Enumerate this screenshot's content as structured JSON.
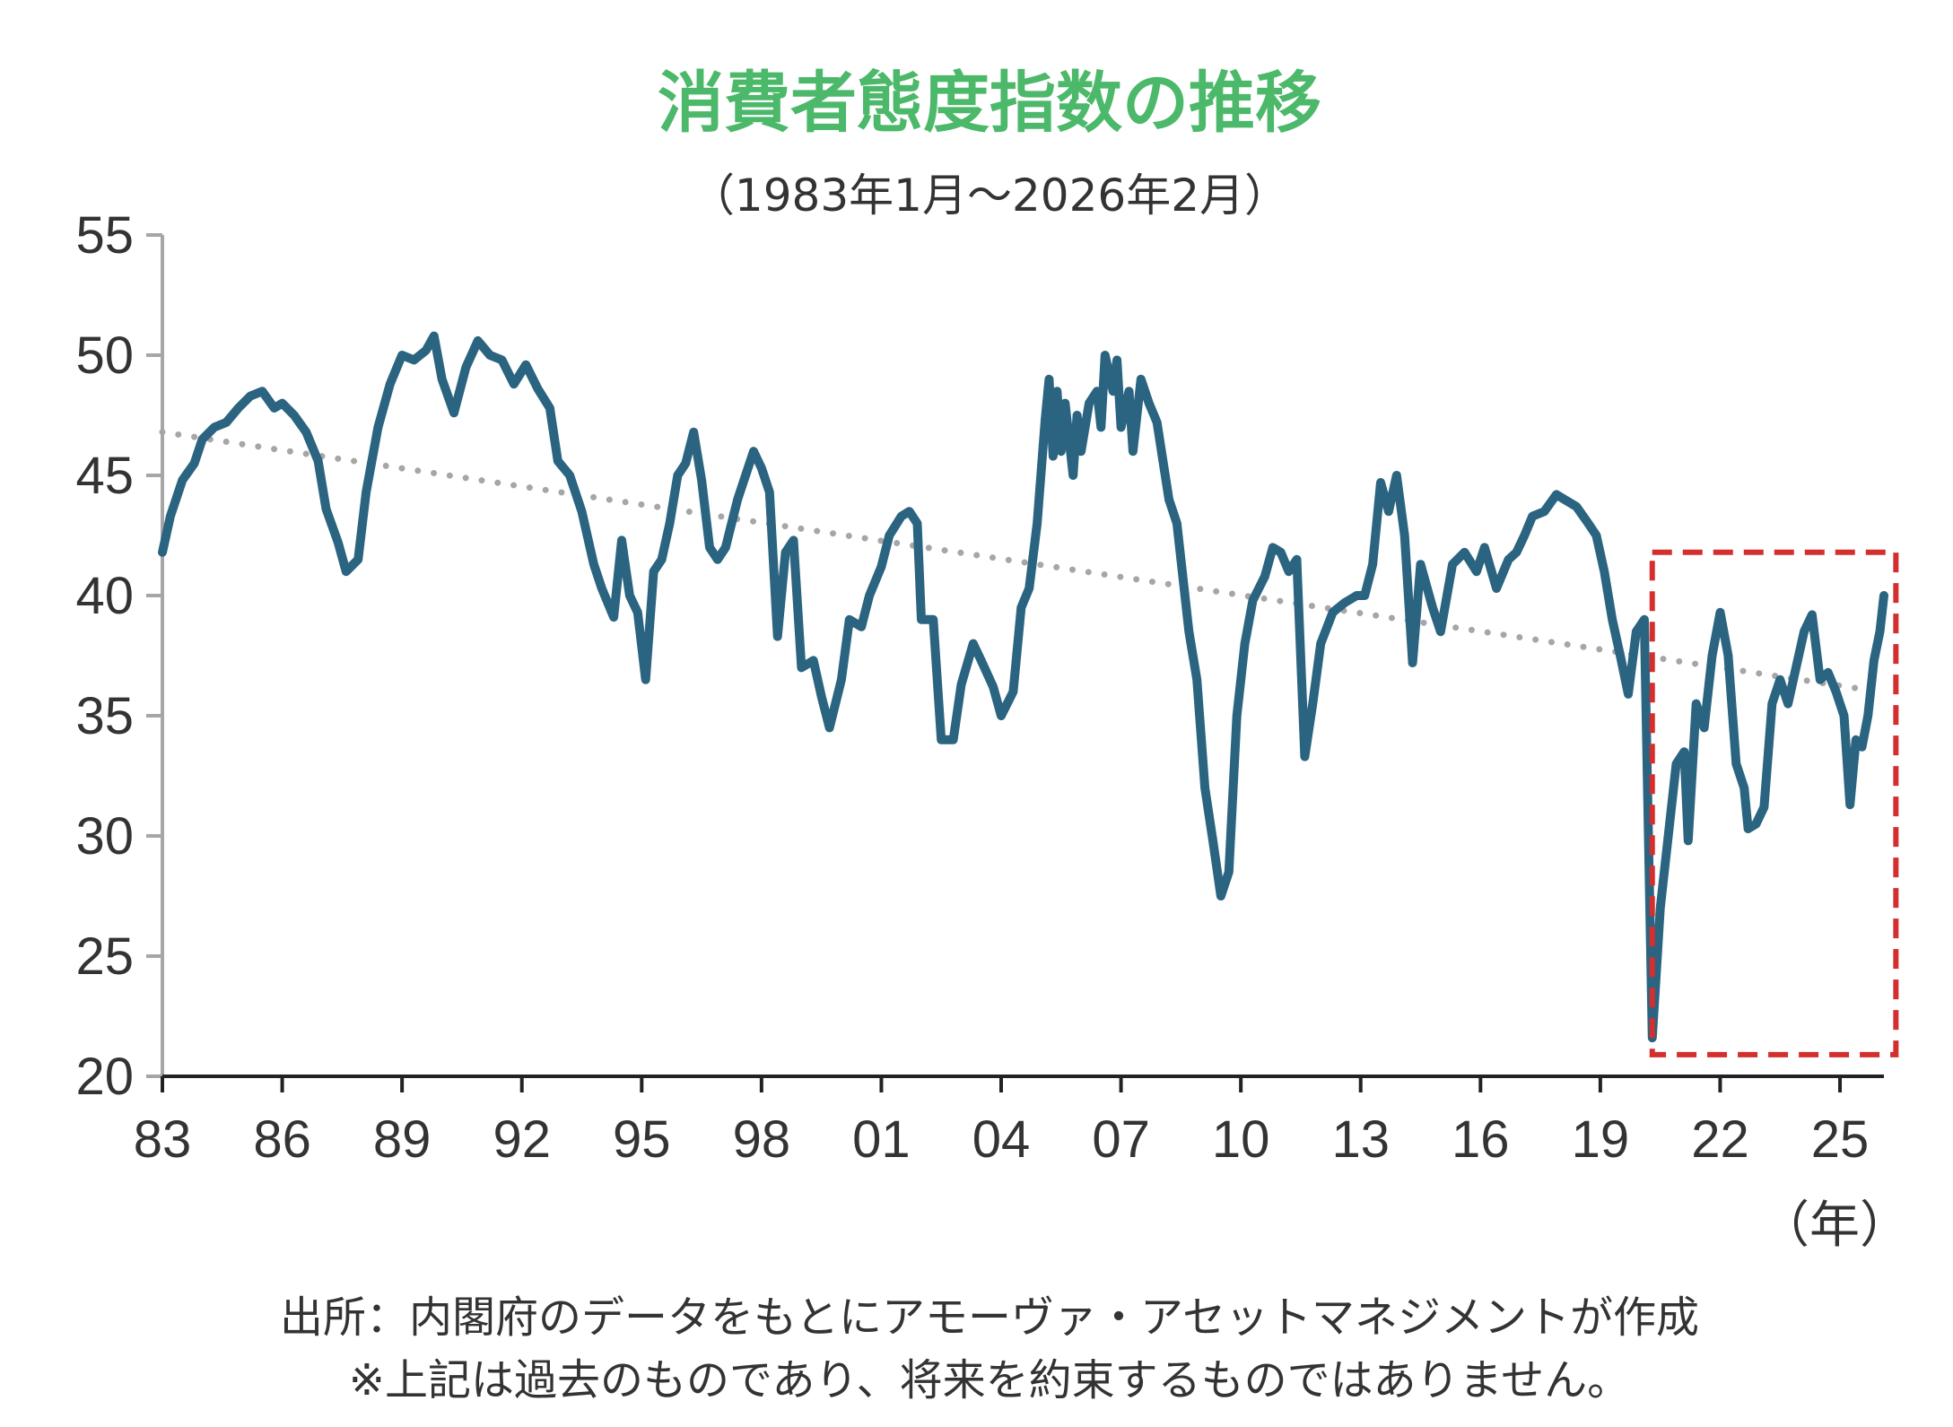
{
  "title": "消費者態度指数の推移",
  "subtitle": "（1983年1月～2026年2月）",
  "x_unit": "（年）",
  "source_note": "出所：内閣府のデータをもとにアモーヴァ・アセットマネジメントが作成",
  "disclaimer": "※上記は過去のものであり、将来を約束するものではありません。",
  "colors": {
    "title": "#4cb86a",
    "series": "#2b6480",
    "trend": "#a6a6a6",
    "highlight_box": "#d32f2f",
    "axis": "#a6a6a6",
    "text": "#333333"
  },
  "chart_data": {
    "type": "line",
    "title": "消費者態度指数の推移",
    "subtitle": "（1983年1月～2026年2月）",
    "xlabel": "（年）",
    "ylabel": "",
    "xlim": [
      1983.0,
      2026.1
    ],
    "ylim": [
      20,
      55
    ],
    "y_ticks": [
      "20",
      "25",
      "30",
      "35",
      "40",
      "45",
      "50",
      "55"
    ],
    "x_ticks": [
      {
        "x": 1983,
        "label": "83"
      },
      {
        "x": 1986,
        "label": "86"
      },
      {
        "x": 1989,
        "label": "89"
      },
      {
        "x": 1992,
        "label": "92"
      },
      {
        "x": 1995,
        "label": "95"
      },
      {
        "x": 1998,
        "label": "98"
      },
      {
        "x": 2001,
        "label": "01"
      },
      {
        "x": 2004,
        "label": "04"
      },
      {
        "x": 2007,
        "label": "07"
      },
      {
        "x": 2010,
        "label": "10"
      },
      {
        "x": 2013,
        "label": "13"
      },
      {
        "x": 2016,
        "label": "16"
      },
      {
        "x": 2019,
        "label": "19"
      },
      {
        "x": 2022,
        "label": "22"
      },
      {
        "x": 2025,
        "label": "25"
      }
    ],
    "grid": false,
    "legend": "none",
    "series": [
      {
        "values": [
          [
            1983.0,
            41.8
          ],
          [
            1983.2,
            43.3
          ],
          [
            1983.5,
            44.8
          ],
          [
            1983.8,
            45.5
          ],
          [
            1984.0,
            46.5
          ],
          [
            1984.3,
            47.0
          ],
          [
            1984.6,
            47.2
          ],
          [
            1984.9,
            47.8
          ],
          [
            1985.2,
            48.3
          ],
          [
            1985.5,
            48.5
          ],
          [
            1985.8,
            47.8
          ],
          [
            1986.0,
            48.0
          ],
          [
            1986.3,
            47.5
          ],
          [
            1986.6,
            46.8
          ],
          [
            1986.9,
            45.6
          ],
          [
            1987.1,
            43.6
          ],
          [
            1987.4,
            42.2
          ],
          [
            1987.6,
            41.0
          ],
          [
            1987.9,
            41.5
          ],
          [
            1988.1,
            44.3
          ],
          [
            1988.4,
            47.0
          ],
          [
            1988.7,
            48.8
          ],
          [
            1989.0,
            50.0
          ],
          [
            1989.3,
            49.8
          ],
          [
            1989.6,
            50.2
          ],
          [
            1989.8,
            50.8
          ],
          [
            1990.0,
            49.0
          ],
          [
            1990.3,
            47.6
          ],
          [
            1990.6,
            49.5
          ],
          [
            1990.9,
            50.6
          ],
          [
            1991.2,
            50.0
          ],
          [
            1991.5,
            49.8
          ],
          [
            1991.8,
            48.8
          ],
          [
            1992.1,
            49.6
          ],
          [
            1992.4,
            48.6
          ],
          [
            1992.7,
            47.8
          ],
          [
            1992.9,
            45.6
          ],
          [
            1993.2,
            45.0
          ],
          [
            1993.5,
            43.5
          ],
          [
            1993.8,
            41.3
          ],
          [
            1994.0,
            40.3
          ],
          [
            1994.3,
            39.1
          ],
          [
            1994.5,
            42.3
          ],
          [
            1994.7,
            40.0
          ],
          [
            1994.9,
            39.3
          ],
          [
            1995.1,
            36.5
          ],
          [
            1995.3,
            41.0
          ],
          [
            1995.5,
            41.5
          ],
          [
            1995.7,
            43.0
          ],
          [
            1995.9,
            45.0
          ],
          [
            1996.1,
            45.5
          ],
          [
            1996.3,
            46.8
          ],
          [
            1996.5,
            44.8
          ],
          [
            1996.7,
            42.0
          ],
          [
            1996.9,
            41.5
          ],
          [
            1997.1,
            42.0
          ],
          [
            1997.4,
            44.0
          ],
          [
            1997.6,
            45.0
          ],
          [
            1997.8,
            46.0
          ],
          [
            1998.0,
            45.3
          ],
          [
            1998.2,
            44.3
          ],
          [
            1998.4,
            38.3
          ],
          [
            1998.6,
            41.8
          ],
          [
            1998.8,
            42.3
          ],
          [
            1999.0,
            37.0
          ],
          [
            1999.3,
            37.3
          ],
          [
            1999.5,
            35.8
          ],
          [
            1999.7,
            34.5
          ],
          [
            2000.0,
            36.5
          ],
          [
            2000.2,
            39.0
          ],
          [
            2000.5,
            38.7
          ],
          [
            2000.7,
            40.0
          ],
          [
            2001.0,
            41.2
          ],
          [
            2001.2,
            42.5
          ],
          [
            2001.5,
            43.3
          ],
          [
            2001.7,
            43.5
          ],
          [
            2001.9,
            43.0
          ],
          [
            2002.0,
            39.0
          ],
          [
            2002.3,
            39.0
          ],
          [
            2002.5,
            34.0
          ],
          [
            2002.8,
            34.0
          ],
          [
            2003.0,
            36.3
          ],
          [
            2003.3,
            38.0
          ],
          [
            2003.5,
            37.3
          ],
          [
            2003.8,
            36.2
          ],
          [
            2004.0,
            35.0
          ],
          [
            2004.3,
            36.0
          ],
          [
            2004.5,
            39.5
          ],
          [
            2004.7,
            40.3
          ],
          [
            2004.9,
            43.0
          ],
          [
            2005.1,
            47.3
          ],
          [
            2005.2,
            49.0
          ],
          [
            2005.3,
            45.8
          ],
          [
            2005.4,
            48.5
          ],
          [
            2005.5,
            46.0
          ],
          [
            2005.6,
            48.0
          ],
          [
            2005.8,
            45.0
          ],
          [
            2005.9,
            47.5
          ],
          [
            2006.0,
            46.0
          ],
          [
            2006.2,
            48.0
          ],
          [
            2006.4,
            48.5
          ],
          [
            2006.5,
            47.0
          ],
          [
            2006.6,
            50.0
          ],
          [
            2006.8,
            48.5
          ],
          [
            2006.9,
            49.8
          ],
          [
            2007.0,
            47.0
          ],
          [
            2007.2,
            48.5
          ],
          [
            2007.3,
            46.0
          ],
          [
            2007.5,
            49.0
          ],
          [
            2007.7,
            48.0
          ],
          [
            2007.9,
            47.2
          ],
          [
            2008.2,
            44.0
          ],
          [
            2008.4,
            43.0
          ],
          [
            2008.7,
            38.5
          ],
          [
            2008.9,
            36.5
          ],
          [
            2009.1,
            32.0
          ],
          [
            2009.3,
            29.8
          ],
          [
            2009.5,
            27.5
          ],
          [
            2009.7,
            28.5
          ],
          [
            2009.9,
            35.0
          ],
          [
            2010.1,
            38.0
          ],
          [
            2010.3,
            39.8
          ],
          [
            2010.6,
            40.8
          ],
          [
            2010.8,
            42.0
          ],
          [
            2011.0,
            41.8
          ],
          [
            2011.2,
            41.0
          ],
          [
            2011.4,
            41.5
          ],
          [
            2011.6,
            33.3
          ],
          [
            2011.8,
            35.5
          ],
          [
            2012.0,
            38.0
          ],
          [
            2012.3,
            39.3
          ],
          [
            2012.6,
            39.7
          ],
          [
            2012.9,
            40.0
          ],
          [
            2013.1,
            40.0
          ],
          [
            2013.3,
            41.3
          ],
          [
            2013.5,
            44.7
          ],
          [
            2013.7,
            43.5
          ],
          [
            2013.9,
            45.0
          ],
          [
            2014.1,
            42.5
          ],
          [
            2014.3,
            37.2
          ],
          [
            2014.5,
            41.3
          ],
          [
            2014.8,
            39.5
          ],
          [
            2015.0,
            38.5
          ],
          [
            2015.3,
            41.3
          ],
          [
            2015.6,
            41.8
          ],
          [
            2015.9,
            41.0
          ],
          [
            2016.1,
            42.0
          ],
          [
            2016.4,
            40.3
          ],
          [
            2016.7,
            41.5
          ],
          [
            2016.9,
            41.8
          ],
          [
            2017.1,
            42.5
          ],
          [
            2017.3,
            43.3
          ],
          [
            2017.6,
            43.5
          ],
          [
            2017.9,
            44.2
          ],
          [
            2018.1,
            44.0
          ],
          [
            2018.4,
            43.7
          ],
          [
            2018.7,
            43.0
          ],
          [
            2018.9,
            42.5
          ],
          [
            2019.1,
            41.0
          ],
          [
            2019.3,
            39.0
          ],
          [
            2019.5,
            37.5
          ],
          [
            2019.7,
            35.9
          ],
          [
            2019.9,
            38.5
          ],
          [
            2020.1,
            39.0
          ],
          [
            2020.3,
            21.6
          ],
          [
            2020.5,
            27.0
          ],
          [
            2020.7,
            30.0
          ],
          [
            2020.9,
            33.0
          ],
          [
            2021.1,
            33.5
          ],
          [
            2021.2,
            29.8
          ],
          [
            2021.4,
            35.5
          ],
          [
            2021.6,
            34.5
          ],
          [
            2021.8,
            37.5
          ],
          [
            2022.0,
            39.3
          ],
          [
            2022.2,
            37.5
          ],
          [
            2022.4,
            33.0
          ],
          [
            2022.6,
            32.0
          ],
          [
            2022.7,
            30.3
          ],
          [
            2022.9,
            30.5
          ],
          [
            2023.1,
            31.2
          ],
          [
            2023.3,
            35.5
          ],
          [
            2023.5,
            36.5
          ],
          [
            2023.7,
            35.5
          ],
          [
            2023.9,
            37.0
          ],
          [
            2024.1,
            38.5
          ],
          [
            2024.3,
            39.2
          ],
          [
            2024.5,
            36.5
          ],
          [
            2024.7,
            36.8
          ],
          [
            2024.9,
            36.0
          ],
          [
            2025.1,
            35.0
          ],
          [
            2025.25,
            31.3
          ],
          [
            2025.4,
            34.0
          ],
          [
            2025.55,
            33.7
          ],
          [
            2025.7,
            35.0
          ],
          [
            2025.85,
            37.3
          ],
          [
            2026.0,
            38.5
          ],
          [
            2026.1,
            40.0
          ]
        ]
      }
    ],
    "trend": {
      "style": "dotted",
      "x": [
        1983.0,
        2026.0
      ],
      "y": [
        46.8,
        36.0
      ]
    },
    "highlight": {
      "style": "dashed-rectangle",
      "x_range": [
        2020.3,
        2026.4
      ],
      "y_range": [
        20.9,
        41.8
      ]
    }
  }
}
